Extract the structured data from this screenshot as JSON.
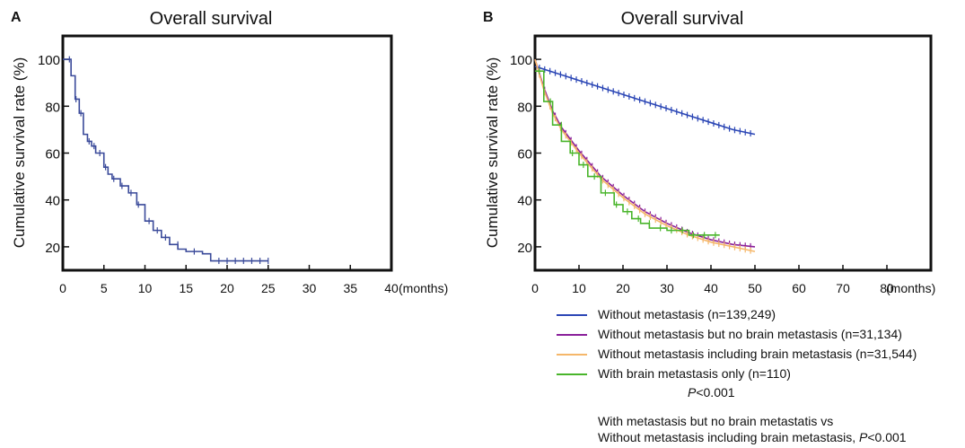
{
  "chart_data": [
    {
      "panel": "A",
      "type": "line",
      "title": "Overall survival",
      "ylabel": "Cumulative survival rate (%)",
      "xlabel": "(months)",
      "xlim": [
        0,
        40
      ],
      "ylim": [
        10,
        110
      ],
      "x_ticks": [
        0,
        5,
        10,
        15,
        20,
        25,
        30,
        35,
        40
      ],
      "y_ticks": [
        20,
        40,
        60,
        80,
        100
      ],
      "step": true,
      "series": [
        {
          "color": "#3a4a9a",
          "points": [
            [
              0,
              100
            ],
            [
              1,
              93
            ],
            [
              1.5,
              83
            ],
            [
              2,
              77
            ],
            [
              2.5,
              68
            ],
            [
              3,
              65
            ],
            [
              3.5,
              63
            ],
            [
              4,
              60
            ],
            [
              5,
              54
            ],
            [
              5.5,
              51
            ],
            [
              6,
              49
            ],
            [
              7,
              46
            ],
            [
              8,
              43
            ],
            [
              9,
              38
            ],
            [
              10,
              31
            ],
            [
              11,
              27
            ],
            [
              12,
              24
            ],
            [
              13,
              21
            ],
            [
              14,
              19
            ],
            [
              15,
              18
            ],
            [
              17,
              17
            ],
            [
              18,
              14
            ],
            [
              25,
              14
            ]
          ],
          "censor_x": [
            0.8,
            1.6,
            2.2,
            3.2,
            3.8,
            4.5,
            5.2,
            6.2,
            7.2,
            8.3,
            9.2,
            10.5,
            11.5,
            12.5,
            14,
            16,
            19,
            20,
            21,
            22,
            23,
            24,
            25
          ]
        }
      ]
    },
    {
      "panel": "B",
      "type": "line",
      "title": "Overall survival",
      "ylabel": "Cumulative survival rate (%)",
      "xlabel": "(months)",
      "xlim": [
        0,
        90
      ],
      "ylim": [
        10,
        110
      ],
      "x_ticks": [
        0,
        10,
        20,
        30,
        40,
        50,
        60,
        70,
        80
      ],
      "y_ticks": [
        20,
        40,
        60,
        80,
        100
      ],
      "series": [
        {
          "name": "Without metastasis (n=139,249)",
          "color": "#2b46b5",
          "points": [
            [
              0,
              97
            ],
            [
              5,
              94
            ],
            [
              10,
              91
            ],
            [
              15,
              88
            ],
            [
              20,
              85
            ],
            [
              25,
              82
            ],
            [
              30,
              79
            ],
            [
              35,
              76
            ],
            [
              40,
              73
            ],
            [
              45,
              70
            ],
            [
              50,
              68
            ]
          ]
        },
        {
          "name": "Without metastasis but no brain metastasis (n=31,134)",
          "color": "#8a1f9a",
          "points": [
            [
              0,
              100
            ],
            [
              2,
              88
            ],
            [
              4,
              78
            ],
            [
              6,
              71
            ],
            [
              8,
              66
            ],
            [
              10,
              61
            ],
            [
              15,
              50
            ],
            [
              20,
              42
            ],
            [
              25,
              35
            ],
            [
              30,
              30
            ],
            [
              35,
              26
            ],
            [
              40,
              23
            ],
            [
              45,
              21
            ],
            [
              50,
              20
            ]
          ]
        },
        {
          "name": "Without metastasis including brain metastasis (n=31,544)",
          "color": "#f5b76a",
          "points": [
            [
              0,
              100
            ],
            [
              2,
              87
            ],
            [
              4,
              77
            ],
            [
              6,
              70
            ],
            [
              8,
              65
            ],
            [
              10,
              60
            ],
            [
              15,
              49
            ],
            [
              20,
              41
            ],
            [
              25,
              34
            ],
            [
              30,
              29
            ],
            [
              35,
              25
            ],
            [
              40,
              22
            ],
            [
              45,
              20
            ],
            [
              50,
              18
            ]
          ]
        },
        {
          "name": "With brain metastasis only (n=110)",
          "color": "#49b52b",
          "step": true,
          "points": [
            [
              0,
              95
            ],
            [
              2,
              82
            ],
            [
              4,
              72
            ],
            [
              6,
              65
            ],
            [
              8,
              60
            ],
            [
              10,
              55
            ],
            [
              12,
              50
            ],
            [
              15,
              43
            ],
            [
              18,
              38
            ],
            [
              20,
              35
            ],
            [
              22,
              32
            ],
            [
              24,
              30
            ],
            [
              26,
              28
            ],
            [
              30,
              27
            ],
            [
              35,
              25
            ],
            [
              40,
              25
            ],
            [
              42,
              25
            ]
          ]
        }
      ]
    }
  ],
  "legend_note_p": "P",
  "legend_note_value": "<0.001",
  "comparison_line1": "With metastasis but no brain metastatis vs",
  "comparison_line2_text": "Without metastasis including brain metastasis, ",
  "comparison_line2_p": "P",
  "comparison_line2_value": "<0.001",
  "panel_labels": [
    "A",
    "B"
  ]
}
